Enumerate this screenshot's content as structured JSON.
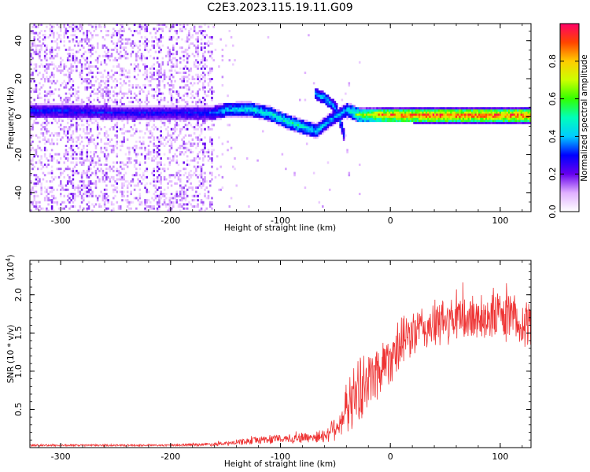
{
  "title": "C2E3.2023.115.19.11.G09",
  "chart_data": [
    {
      "type": "heatmap",
      "xlabel": "Height of straight line (km)",
      "ylabel": "Frequency (Hz)",
      "xlim": [
        -328,
        128
      ],
      "ylim": [
        -50,
        49
      ],
      "xticks": [
        -300,
        -200,
        -100,
        0,
        100
      ],
      "yticks": [
        -40,
        -20,
        0,
        20,
        40
      ],
      "ytick_labels": [
        "-40",
        "-20",
        "0",
        "20",
        "40"
      ],
      "colorbar": {
        "label": "Normalized spectral amplitude",
        "range": [
          0,
          1
        ],
        "ticks": [
          0.0,
          0.2,
          0.4,
          0.6,
          0.8
        ],
        "tick_labels": [
          "0.0",
          "0.2",
          "0.4",
          "0.6",
          "0.8"
        ]
      },
      "noise_region_x": [
        -328,
        -162
      ],
      "ridge": [
        {
          "x": -328,
          "f": 2.5,
          "a": 0.32
        },
        {
          "x": -300,
          "f": 2.5,
          "a": 0.32
        },
        {
          "x": -250,
          "f": 1.5,
          "a": 0.3
        },
        {
          "x": -200,
          "f": 1.5,
          "a": 0.3
        },
        {
          "x": -162,
          "f": 1.5,
          "a": 0.34
        },
        {
          "x": -150,
          "f": 3,
          "a": 0.45
        },
        {
          "x": -130,
          "f": 3.5,
          "a": 0.48
        },
        {
          "x": -110,
          "f": 1,
          "a": 0.5
        },
        {
          "x": -95,
          "f": -3,
          "a": 0.52
        },
        {
          "x": -80,
          "f": -6,
          "a": 0.5
        },
        {
          "x": -68,
          "f": -8,
          "a": 0.45
        },
        {
          "x": -55,
          "f": -2,
          "a": 0.4
        },
        {
          "x": -40,
          "f": 3,
          "a": 0.45
        },
        {
          "x": -30,
          "f": 0.5,
          "a": 0.65
        },
        {
          "x": -10,
          "f": 0.5,
          "a": 0.85
        },
        {
          "x": 20,
          "f": 0.2,
          "a": 0.95
        },
        {
          "x": 60,
          "f": 0.2,
          "a": 0.95
        },
        {
          "x": 100,
          "f": 0.2,
          "a": 0.95
        },
        {
          "x": 128,
          "f": 0.2,
          "a": 0.95
        }
      ],
      "branch": [
        {
          "x": -70,
          "f": 12,
          "a": 0.42
        },
        {
          "x": -60,
          "f": 9,
          "a": 0.45
        },
        {
          "x": -50,
          "f": 4,
          "a": 0.4
        },
        {
          "x": -45,
          "f": -6,
          "a": 0.38
        },
        {
          "x": -42,
          "f": -12,
          "a": 0.4
        }
      ]
    },
    {
      "type": "line",
      "xlabel": "Height of straight line (km)",
      "ylabel": "SNR (10 * v/v)",
      "multiplier_label": "(x10",
      "multiplier_exponent": "4",
      "xlim": [
        -328,
        128
      ],
      "ylim": [
        0,
        2.45
      ],
      "xticks": [
        -300,
        -200,
        -100,
        0,
        100
      ],
      "yticks": [
        0.5,
        1.0,
        1.5,
        2.0
      ],
      "ytick_labels": [
        "0.5",
        "1.0",
        "1.5",
        "2.0"
      ],
      "series": [
        {
          "color": "#ee3333",
          "envelope": [
            {
              "x": -328,
              "mean": 0.03,
              "amp": 0.015
            },
            {
              "x": -200,
              "mean": 0.03,
              "amp": 0.015
            },
            {
              "x": -150,
              "mean": 0.05,
              "amp": 0.03
            },
            {
              "x": -120,
              "mean": 0.1,
              "amp": 0.06
            },
            {
              "x": -80,
              "mean": 0.13,
              "amp": 0.08
            },
            {
              "x": -60,
              "mean": 0.15,
              "amp": 0.1
            },
            {
              "x": -45,
              "mean": 0.35,
              "amp": 0.25
            },
            {
              "x": -35,
              "mean": 0.65,
              "amp": 0.45
            },
            {
              "x": -25,
              "mean": 0.8,
              "amp": 0.5
            },
            {
              "x": -15,
              "mean": 0.95,
              "amp": 0.45
            },
            {
              "x": 0,
              "mean": 1.2,
              "amp": 0.4
            },
            {
              "x": 20,
              "mean": 1.5,
              "amp": 0.35
            },
            {
              "x": 50,
              "mean": 1.65,
              "amp": 0.35
            },
            {
              "x": 80,
              "mean": 1.7,
              "amp": 0.35
            },
            {
              "x": 100,
              "mean": 1.75,
              "amp": 0.38
            },
            {
              "x": 128,
              "mean": 1.6,
              "amp": 0.35
            }
          ]
        }
      ]
    }
  ]
}
